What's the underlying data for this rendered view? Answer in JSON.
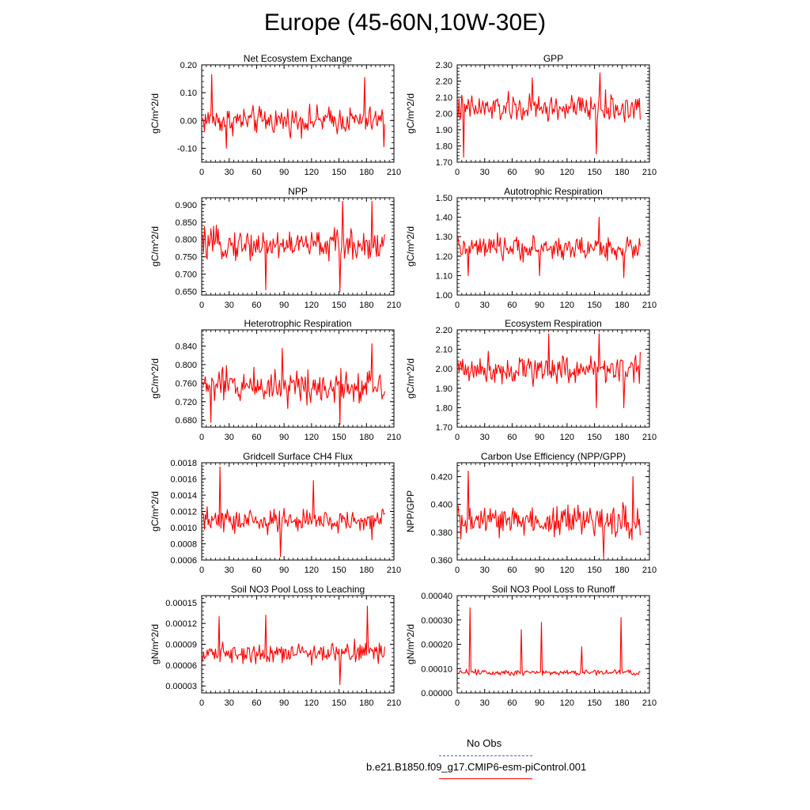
{
  "title": "Europe (45-60N,10W-30E)",
  "legend": {
    "obs_label": "No Obs",
    "obs_color": "#5555ff",
    "model_label": "b.e21.B1850.f09_g17.CMIP6-esm-piControl.001",
    "model_color": "#ff0000"
  },
  "chart_data": [
    {
      "type": "line",
      "title": "Net Ecosystem Exchange",
      "ylabel": "gC/m^2/d",
      "xlim": [
        0,
        210
      ],
      "xticks": [
        "0",
        "30",
        "60",
        "90",
        "120",
        "150",
        "180",
        "210"
      ],
      "ylim": [
        -0.15,
        0.2
      ],
      "yticks": [
        -0.1,
        0.0,
        0.1,
        0.2
      ],
      "ytick_labels": [
        "-0.10",
        "0.00",
        "0.10",
        "0.20"
      ],
      "series": [
        {
          "mean": 0.0,
          "amp": 0.045,
          "extremes": [
            [
              11,
              0.165
            ],
            [
              27,
              -0.1
            ],
            [
              178,
              0.155
            ],
            [
              199,
              -0.095
            ]
          ]
        }
      ]
    },
    {
      "type": "line",
      "title": "GPP",
      "ylabel": "gC/m^2/d",
      "xlim": [
        0,
        210
      ],
      "xticks": [
        "0",
        "30",
        "60",
        "90",
        "120",
        "150",
        "180",
        "210"
      ],
      "ylim": [
        1.7,
        2.3
      ],
      "yticks": [
        1.7,
        1.8,
        1.9,
        2.0,
        2.1,
        2.2,
        2.3
      ],
      "ytick_labels": [
        "1.70",
        "1.80",
        "1.90",
        "2.00",
        "2.10",
        "2.20",
        "2.30"
      ],
      "series": [
        {
          "mean": 2.03,
          "amp": 0.08,
          "extremes": [
            [
              7,
              1.73
            ],
            [
              152,
              1.75
            ],
            [
              156,
              2.25
            ],
            [
              82,
              2.22
            ]
          ]
        }
      ]
    },
    {
      "type": "line",
      "title": "NPP",
      "ylabel": "gC/m^2/d",
      "xlim": [
        0,
        210
      ],
      "xticks": [
        "0",
        "30",
        "60",
        "90",
        "120",
        "150",
        "180",
        "210"
      ],
      "ylim": [
        0.64,
        0.92
      ],
      "yticks": [
        0.65,
        0.7,
        0.75,
        0.8,
        0.85,
        0.9
      ],
      "ytick_labels": [
        "0.650",
        "0.700",
        "0.750",
        "0.800",
        "0.850",
        "0.900"
      ],
      "series": [
        {
          "mean": 0.785,
          "amp": 0.04,
          "extremes": [
            [
              151,
              0.65
            ],
            [
              154,
              0.91
            ],
            [
              186,
              0.91
            ],
            [
              70,
              0.655
            ]
          ]
        }
      ]
    },
    {
      "type": "line",
      "title": "Autotrophic Respiration",
      "ylabel": "gC/m^2/d",
      "xlim": [
        0,
        210
      ],
      "xticks": [
        "0",
        "30",
        "60",
        "90",
        "120",
        "150",
        "180",
        "210"
      ],
      "ylim": [
        1.0,
        1.5
      ],
      "yticks": [
        1.0,
        1.1,
        1.2,
        1.3,
        1.4,
        1.5
      ],
      "ytick_labels": [
        "1.00",
        "1.10",
        "1.20",
        "1.30",
        "1.40",
        "1.50"
      ],
      "series": [
        {
          "mean": 1.24,
          "amp": 0.055,
          "extremes": [
            [
              12,
              1.1
            ],
            [
              155,
              1.4
            ],
            [
              182,
              1.09
            ],
            [
              90,
              1.1
            ]
          ]
        }
      ]
    },
    {
      "type": "line",
      "title": "Heterotrophic Respiration",
      "ylabel": "gC/m^2/d",
      "xlim": [
        0,
        210
      ],
      "xticks": [
        "0",
        "30",
        "60",
        "90",
        "120",
        "150",
        "180",
        "210"
      ],
      "ylim": [
        0.665,
        0.875
      ],
      "yticks": [
        0.68,
        0.72,
        0.76,
        0.8,
        0.84
      ],
      "ytick_labels": [
        "0.680",
        "0.720",
        "0.760",
        "0.800",
        "0.840"
      ],
      "series": [
        {
          "mean": 0.755,
          "amp": 0.035,
          "extremes": [
            [
              186,
              0.845
            ],
            [
              151,
              0.67
            ],
            [
              10,
              0.675
            ],
            [
              88,
              0.835
            ]
          ]
        }
      ]
    },
    {
      "type": "line",
      "title": "Ecosystem Respiration",
      "ylabel": "gC/m^2/d",
      "xlim": [
        0,
        210
      ],
      "xticks": [
        "0",
        "30",
        "60",
        "90",
        "120",
        "150",
        "180",
        "210"
      ],
      "ylim": [
        1.7,
        2.2
      ],
      "yticks": [
        1.7,
        1.8,
        1.9,
        2.0,
        2.1,
        2.2
      ],
      "ytick_labels": [
        "1.70",
        "1.80",
        "1.90",
        "2.00",
        "2.10",
        "2.20"
      ],
      "series": [
        {
          "mean": 2.0,
          "amp": 0.07,
          "extremes": [
            [
              100,
              2.18
            ],
            [
              155,
              2.18
            ],
            [
              152,
              1.8
            ],
            [
              182,
              1.8
            ]
          ]
        }
      ]
    },
    {
      "type": "line",
      "title": "Gridcell Surface CH4 Flux",
      "ylabel": "gC/m^2/d",
      "xlim": [
        0,
        210
      ],
      "xticks": [
        "0",
        "30",
        "60",
        "90",
        "120",
        "150",
        "180",
        "210"
      ],
      "ylim": [
        0.0006,
        0.0018
      ],
      "yticks": [
        0.0006,
        0.0008,
        0.001,
        0.0012,
        0.0014,
        0.0016,
        0.0018
      ],
      "ytick_labels": [
        "0.0006",
        "0.0008",
        "0.0010",
        "0.0012",
        "0.0014",
        "0.0016",
        "0.0018"
      ],
      "series": [
        {
          "mean": 0.00108,
          "amp": 0.00014,
          "extremes": [
            [
              20,
              0.00175
            ],
            [
              86,
              0.00064
            ],
            [
              122,
              0.00158
            ],
            [
              186,
              0.00085
            ]
          ]
        }
      ]
    },
    {
      "type": "line",
      "title": "Carbon Use Efficiency (NPP/GPP)",
      "ylabel": "NPP/GPP",
      "xlim": [
        0,
        210
      ],
      "xticks": [
        "0",
        "30",
        "60",
        "90",
        "120",
        "150",
        "180",
        "210"
      ],
      "ylim": [
        0.36,
        0.43
      ],
      "yticks": [
        0.36,
        0.38,
        0.4,
        0.42
      ],
      "ytick_labels": [
        "0.360",
        "0.380",
        "0.400",
        "0.420"
      ],
      "series": [
        {
          "mean": 0.388,
          "amp": 0.011,
          "extremes": [
            [
              12,
              0.424
            ],
            [
              160,
              0.362
            ],
            [
              192,
              0.42
            ],
            [
              4,
              0.375
            ]
          ]
        }
      ]
    },
    {
      "type": "line",
      "title": "Soil NO3 Pool Loss to Leaching",
      "ylabel": "gN/m^2/d",
      "xlim": [
        0,
        210
      ],
      "xticks": [
        "0",
        "30",
        "60",
        "90",
        "120",
        "150",
        "180",
        "210"
      ],
      "ylim": [
        2e-05,
        0.00016
      ],
      "yticks": [
        3e-05,
        6e-05,
        9e-05,
        0.00012,
        0.00015
      ],
      "ytick_labels": [
        "0.00003",
        "0.00006",
        "0.00009",
        "0.00012",
        "0.00015"
      ],
      "series": [
        {
          "mean": 7.8e-05,
          "amp": 1.3e-05,
          "extremes": [
            [
              181,
              0.000145
            ],
            [
              151,
              3.2e-05
            ],
            [
              70,
              0.000132
            ],
            [
              19,
              0.00013
            ]
          ]
        }
      ]
    },
    {
      "type": "line",
      "title": "Soil NO3 Pool Loss to Runoff",
      "ylabel": "gN/m^2/d",
      "xlim": [
        0,
        210
      ],
      "xticks": [
        "0",
        "30",
        "60",
        "90",
        "120",
        "150",
        "180",
        "210"
      ],
      "ylim": [
        0.0,
        0.0004
      ],
      "yticks": [
        0.0,
        0.0001,
        0.0002,
        0.0003,
        0.0004
      ],
      "ytick_labels": [
        "0.00000",
        "0.00010",
        "0.00020",
        "0.00030",
        "0.00040"
      ],
      "series": [
        {
          "mean": 8.5e-05,
          "amp": 1.2e-05,
          "extremes": [
            [
              14,
              0.00035
            ],
            [
              92,
              0.00029
            ],
            [
              179,
              0.00031
            ],
            [
              70,
              0.00026
            ],
            [
              136,
              0.00019
            ]
          ]
        }
      ]
    }
  ]
}
